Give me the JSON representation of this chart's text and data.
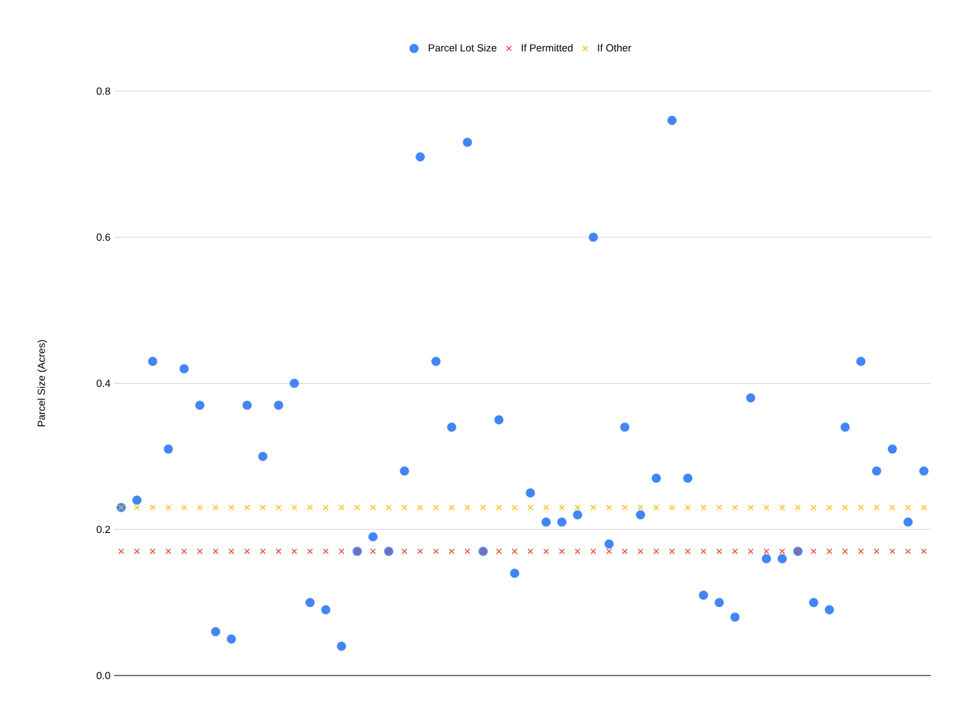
{
  "chart_data": {
    "type": "scatter",
    "ylabel": "Parcel Size (Acres)",
    "categories": [
      null,
      null,
      null,
      null,
      null,
      null,
      null,
      null,
      null,
      null,
      null,
      null,
      null,
      null,
      null,
      null,
      null,
      null,
      null,
      null,
      null,
      null,
      null,
      null,
      null,
      null,
      null,
      null,
      null,
      null,
      null,
      null,
      null,
      null,
      null,
      null,
      null,
      null,
      null,
      null,
      null,
      null,
      null,
      null,
      null,
      null,
      null,
      null,
      null,
      null,
      null,
      null
    ],
    "series": [
      {
        "name": "Parcel Lot Size",
        "color": "#4285f4",
        "marker": "circle",
        "values": [
          0.23,
          0.24,
          0.43,
          0.31,
          0.42,
          0.37,
          0.06,
          0.05,
          0.37,
          0.3,
          0.37,
          0.4,
          0.1,
          0.09,
          0.04,
          0.17,
          0.19,
          0.17,
          0.28,
          0.71,
          0.43,
          0.34,
          0.73,
          0.17,
          0.35,
          0.14,
          0.25,
          0.21,
          0.21,
          0.22,
          0.6,
          0.18,
          0.34,
          0.22,
          0.27,
          0.76,
          0.27,
          0.11,
          0.1,
          0.08,
          0.38,
          0.16,
          0.16,
          0.17,
          0.1,
          0.09,
          0.34,
          0.43,
          0.28,
          0.31,
          0.21,
          0.28
        ]
      },
      {
        "name": "If Permitted",
        "color": "#ea4335",
        "marker": "cross",
        "values": [
          0.17,
          0.17,
          0.17,
          0.17,
          0.17,
          0.17,
          0.17,
          0.17,
          0.17,
          0.17,
          0.17,
          0.17,
          0.17,
          0.17,
          0.17,
          0.17,
          0.17,
          0.17,
          0.17,
          0.17,
          0.17,
          0.17,
          0.17,
          0.17,
          0.17,
          0.17,
          0.17,
          0.17,
          0.17,
          0.17,
          0.17,
          0.17,
          0.17,
          0.17,
          0.17,
          0.17,
          0.17,
          0.17,
          0.17,
          0.17,
          0.17,
          0.17,
          0.17,
          0.17,
          0.17,
          0.17,
          0.17,
          0.17,
          0.17,
          0.17,
          0.17,
          0.17
        ]
      },
      {
        "name": "If Other",
        "color": "#fbbc04",
        "marker": "cross",
        "values": [
          0.23,
          0.23,
          0.23,
          0.23,
          0.23,
          0.23,
          0.23,
          0.23,
          0.23,
          0.23,
          0.23,
          0.23,
          0.23,
          0.23,
          0.23,
          0.23,
          0.23,
          0.23,
          0.23,
          0.23,
          0.23,
          0.23,
          0.23,
          0.23,
          0.23,
          0.23,
          0.23,
          0.23,
          0.23,
          0.23,
          0.23,
          0.23,
          0.23,
          0.23,
          0.23,
          0.23,
          0.23,
          0.23,
          0.23,
          0.23,
          0.23,
          0.23,
          0.23,
          0.23,
          0.23,
          0.23,
          0.23,
          0.23,
          0.23,
          0.23,
          0.23,
          0.23
        ]
      }
    ],
    "ylim": [
      0,
      0.8
    ],
    "yticks": [
      {
        "value": 0,
        "label": "0.0"
      },
      {
        "value": 0.2,
        "label": "0.2"
      },
      {
        "value": 0.4,
        "label": "0.4"
      },
      {
        "value": 0.6,
        "label": "0.6"
      },
      {
        "value": 0.8,
        "label": "0.8"
      }
    ],
    "grid": "y",
    "legend": "top"
  }
}
